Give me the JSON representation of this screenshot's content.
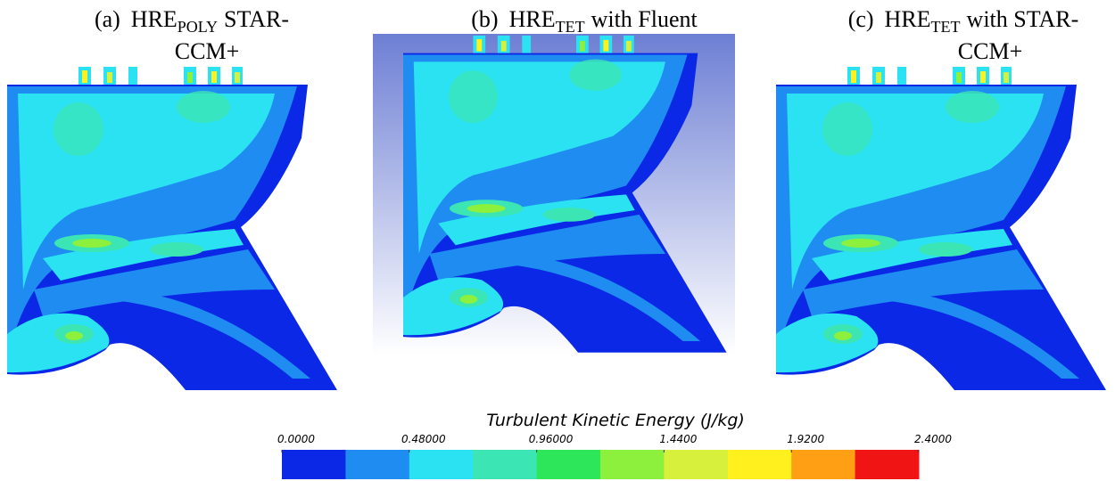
{
  "panels": [
    {
      "label": "(a)",
      "name": "HRE",
      "subscript": "POLY",
      "suffix": "STAR-",
      "continuation": "CCM+"
    },
    {
      "label": "(b)",
      "name": "HRE",
      "subscript": "TET",
      "suffix": "with Fluent"
    },
    {
      "label": "(c)",
      "name": "HRE",
      "subscript": "TET",
      "suffix": "with STAR-",
      "continuation": "CCM+"
    }
  ],
  "colorbar": {
    "title": "Turbulent Kinetic Energy (J/kg)",
    "ticks": [
      {
        "value": 0,
        "label": "0.0000"
      },
      {
        "value": 0.48,
        "label": "0.48000"
      },
      {
        "value": 0.96,
        "label": "0.96000"
      },
      {
        "value": 1.44,
        "label": "1.4400"
      },
      {
        "value": 1.92,
        "label": "1.9200"
      },
      {
        "value": 2.4,
        "label": "2.4000"
      }
    ],
    "colors": [
      "#0a28e6",
      "#1e8cf0",
      "#2ae2f2",
      "#3ce6b4",
      "#2ee65a",
      "#8cf03c",
      "#d6f03c",
      "#fff01e",
      "#ffa014",
      "#f01414"
    ]
  }
}
